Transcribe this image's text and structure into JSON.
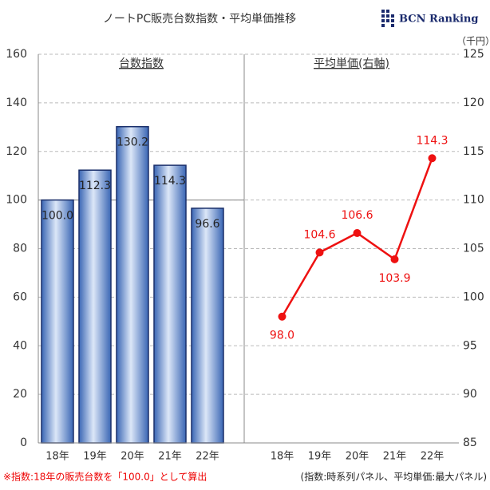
{
  "title": "ノートPC販売台数指数・平均単価推移",
  "logo": "BCN Ranking",
  "notes": [
    "※指数:18年の販売台数を「100.0」として算出",
    "(指数:時系列パネル、平均単価:最大パネル)"
  ],
  "chart_data": [
    {
      "type": "bar",
      "title": "台数指数",
      "categories": [
        "18年",
        "19年",
        "20年",
        "21年",
        "22年"
      ],
      "values": [
        100.0,
        112.3,
        130.2,
        114.3,
        96.6
      ],
      "value_labels": [
        "100.0",
        "112.3",
        "130.2",
        "114.3",
        "96.6"
      ],
      "ylim": [
        0,
        160
      ],
      "yticks": [
        0,
        20,
        40,
        60,
        80,
        100,
        120,
        140,
        160
      ],
      "grid": true,
      "reference_line": 100,
      "color": "#3f6fc0"
    },
    {
      "type": "line",
      "title": "平均単価(右軸)",
      "categories": [
        "18年",
        "19年",
        "20年",
        "21年",
        "22年"
      ],
      "values": [
        98.0,
        104.6,
        106.6,
        103.9,
        114.3
      ],
      "value_labels": [
        "98.0",
        "104.6",
        "106.6",
        "103.9",
        "114.3"
      ],
      "y2lim": [
        85,
        125
      ],
      "y2ticks": [
        85,
        90,
        95,
        100,
        105,
        110,
        115,
        120,
        125
      ],
      "y2_unit": "（千円）",
      "color": "#ee1111"
    }
  ]
}
